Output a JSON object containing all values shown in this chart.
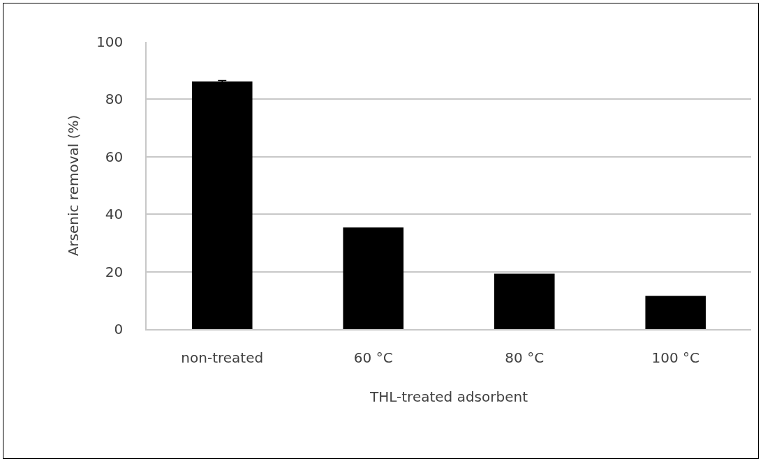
{
  "chart_data": {
    "type": "bar",
    "xlabel": "THL-treated adsorbent",
    "ylabel": "Arsenic removal (%)",
    "categories": [
      "non-treated",
      "60 °C",
      "80 °C",
      "100 °C"
    ],
    "values": [
      86.2,
      35.4,
      19.3,
      11.6
    ],
    "errors": [
      0.3,
      null,
      null,
      null
    ],
    "color": "#000000",
    "ylim": [
      0,
      100
    ],
    "yticks": [
      0,
      20,
      40,
      60,
      80,
      100
    ],
    "grid": "y"
  }
}
